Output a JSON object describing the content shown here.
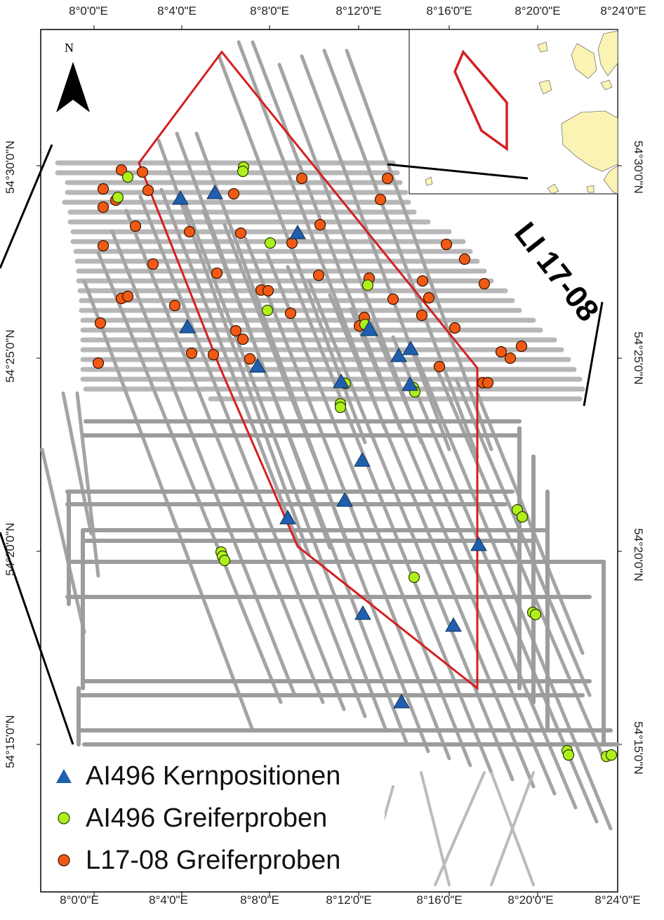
{
  "map": {
    "north_label": "N",
    "survey_label": "LI 17-08",
    "lon_ticks": [
      "8°0'0\"E",
      "8°4'0\"E",
      "8°8'0\"E",
      "8°12'0\"E",
      "8°16'0\"E",
      "8°20'0\"E",
      "8°24'0\"E"
    ],
    "lat_ticks": [
      "54°30'0\"N",
      "54°25'0\"N",
      "54°20'0\"N",
      "54°15'0\"N"
    ],
    "legend": [
      {
        "symbol": "triangle",
        "color": "#1f5fae",
        "label": "AI496 Kernpositionen"
      },
      {
        "symbol": "circle",
        "color": "#aef01c",
        "label": "AI496 Greiferproben"
      },
      {
        "symbol": "circle",
        "color": "#f05a14",
        "label": "L17-08 Greiferproben"
      }
    ],
    "colors": {
      "survey_polygon": "#d42020",
      "tracklines": "#a9a9a9",
      "land": "#fbf3b3",
      "core": "#1f5fae",
      "grab_ai496": "#aef01c",
      "grab_l17": "#f05a14"
    }
  }
}
